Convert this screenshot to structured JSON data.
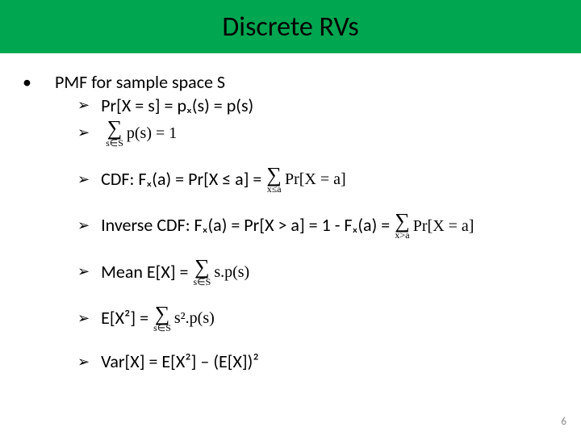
{
  "title": "Discrete RVs",
  "mainBullet": "PMF for sample space S",
  "items": {
    "pmf": "Pr[X = s] = pₓ(s) = p(s)",
    "sumEq1": {
      "under": "s∈S",
      "body": "p(s) = 1"
    },
    "cdf": {
      "label": "CDF: Fₓ(a) = Pr[X ≤ a] =",
      "under": "x≤a",
      "body": "Pr[X = a]"
    },
    "invcdf": {
      "label": "Inverse CDF: Fₓ(a) = Pr[X > a] = 1 - Fₓ(a) =",
      "under": "x>a",
      "body": "Pr[X = a]"
    },
    "mean": {
      "label": "Mean E[X] =",
      "under": "s∈S",
      "body": "s.p(s)"
    },
    "ex2": {
      "label": "E[X²] =",
      "under": "s∈S",
      "body": "s².p(s)"
    },
    "var": "Var[X] = E[X²] – (E[X])²"
  },
  "pageNumber": "6",
  "colors": {
    "titleBg": "#00a650",
    "text": "#000000",
    "pageNum": "#8a8a8a",
    "bg": "#ffffff"
  }
}
